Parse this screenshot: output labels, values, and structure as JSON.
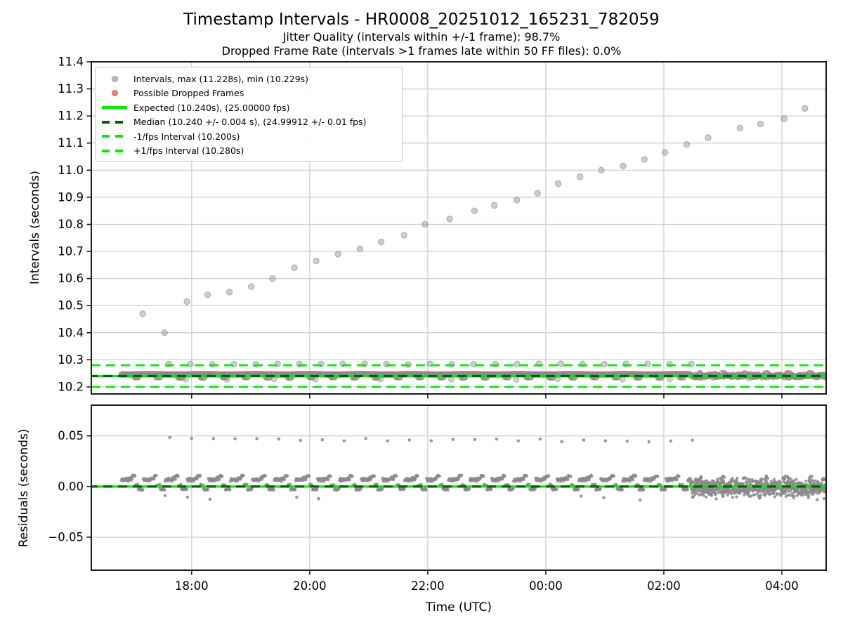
{
  "figure": {
    "title": "Timestamp Intervals - HR0008_20251012_165231_782059",
    "subtitle1": "Jitter Quality (intervals within +/-1 frame): 98.7%",
    "subtitle2": "Dropped Frame Rate (intervals >1 frames late within 50 FF files): 0.0%"
  },
  "colors": {
    "lime": "#00ef00",
    "darkgreen": "#006400",
    "gray": "#9c9c9c",
    "gray_edge": "#7a7a7a",
    "gray_solid": "#8a8a8a",
    "red": "#ef6b6b",
    "red_edge": "#e05555",
    "grid": "#cdcdcd",
    "spine": "#000000"
  },
  "legend": {
    "items": [
      {
        "marker": "dot",
        "color": "gray",
        "label": "Intervals, max (11.228s), min (10.229s)"
      },
      {
        "marker": "dot",
        "color": "red",
        "label": "Possible Dropped Frames"
      },
      {
        "marker": "line-solid",
        "color": "lime",
        "label": "Expected (10.240s), (25.00000 fps)"
      },
      {
        "marker": "line-dashed",
        "color": "darkgreen",
        "label": "Median (10.240 +/- 0.004 s), (24.99912 +/- 0.01 fps)"
      },
      {
        "marker": "line-dashed",
        "color": "lime",
        "label": "-1/fps Interval (10.200s)"
      },
      {
        "marker": "line-dashed",
        "color": "lime",
        "label": "+1/fps Interval (10.280s)"
      }
    ]
  },
  "chart_data": [
    {
      "name": "intervals",
      "type": "scatter",
      "ylabel": "Intervals (seconds)",
      "xlim": [
        16.3,
        28.75
      ],
      "ylim": [
        10.174,
        11.4
      ],
      "xtick_labels_visible": false,
      "grid": true,
      "xticks": [
        {
          "v": 18,
          "label": "18:00"
        },
        {
          "v": 20,
          "label": "20:00"
        },
        {
          "v": 22,
          "label": "22:00"
        },
        {
          "v": 24,
          "label": "00:00"
        },
        {
          "v": 26,
          "label": "02:00"
        },
        {
          "v": 28,
          "label": "04:00"
        }
      ],
      "yticks": [
        {
          "v": 10.2,
          "label": "10.2"
        },
        {
          "v": 10.3,
          "label": "10.3"
        },
        {
          "v": 10.4,
          "label": "10.4"
        },
        {
          "v": 10.5,
          "label": "10.5"
        },
        {
          "v": 10.6,
          "label": "10.6"
        },
        {
          "v": 10.7,
          "label": "10.7"
        },
        {
          "v": 10.8,
          "label": "10.8"
        },
        {
          "v": 10.9,
          "label": "10.9"
        },
        {
          "v": 11.0,
          "label": "11.0"
        },
        {
          "v": 11.1,
          "label": "11.1"
        },
        {
          "v": 11.2,
          "label": "11.2"
        },
        {
          "v": 11.3,
          "label": "11.3"
        },
        {
          "v": 11.4,
          "label": "11.4"
        }
      ],
      "hlines": [
        {
          "name": "expected-line",
          "v": 10.24,
          "style": "solid",
          "color": "lime",
          "width": 3.2
        },
        {
          "name": "median-line",
          "v": 10.24,
          "style": "dashed",
          "color": "darkgreen",
          "width": 3.2
        },
        {
          "name": "minus-1fps-line",
          "v": 10.2,
          "style": "dashed",
          "color": "lime",
          "width": 2.8
        },
        {
          "name": "plus-1fps-line",
          "v": 10.28,
          "style": "dashed",
          "color": "lime",
          "width": 2.8
        }
      ],
      "series": {
        "trend": {
          "kind": "points",
          "r": 4.2,
          "points": [
            [
              17.17,
              10.47
            ],
            [
              17.54,
              10.4
            ],
            [
              17.92,
              10.515
            ],
            [
              18.27,
              10.54
            ],
            [
              18.64,
              10.55
            ],
            [
              19.01,
              10.57
            ],
            [
              19.37,
              10.6
            ],
            [
              19.74,
              10.64
            ],
            [
              20.11,
              10.665
            ],
            [
              20.48,
              10.69
            ],
            [
              20.85,
              10.71
            ],
            [
              21.21,
              10.735
            ],
            [
              21.6,
              10.76
            ],
            [
              21.95,
              10.8
            ],
            [
              22.37,
              10.82
            ],
            [
              22.79,
              10.85
            ],
            [
              23.13,
              10.87
            ],
            [
              23.51,
              10.89
            ],
            [
              23.86,
              10.915
            ],
            [
              24.21,
              10.95
            ],
            [
              24.58,
              10.975
            ],
            [
              24.94,
              11.0
            ],
            [
              25.31,
              11.015
            ],
            [
              25.67,
              11.04
            ],
            [
              26.02,
              11.065
            ],
            [
              26.39,
              11.095
            ],
            [
              26.75,
              11.12
            ],
            [
              27.29,
              11.155
            ],
            [
              27.64,
              11.17
            ],
            [
              28.04,
              11.19
            ],
            [
              28.39,
              11.228
            ]
          ]
        },
        "plus_frame_dots": {
          "kind": "repeat",
          "t0": 17.61,
          "step": 0.369,
          "count": 25,
          "v": 10.284,
          "v_end": 10.284,
          "vjitter": 0.0012,
          "r": 4.2
        },
        "band": {
          "kind": "band",
          "t0": 16.81,
          "t1": 26.45,
          "period": 0.369,
          "base": 10.2465,
          "dip": 10.2355,
          "r": 4
        },
        "band_noise": {
          "kind": "noise",
          "t0": 26.45,
          "t1": 28.74,
          "center": 10.2405,
          "sigma": 0.0035,
          "bump": 10.2515,
          "period": 0.369,
          "r": 3.5
        },
        "low_dots": {
          "kind": "points",
          "r": 4,
          "opacity": 0.45,
          "points": [
            [
              17.9,
              10.228
            ],
            [
              18.6,
              10.2275
            ],
            [
              19.4,
              10.229
            ],
            [
              20.1,
              10.228
            ],
            [
              21.2,
              10.2285
            ],
            [
              22.4,
              10.228
            ],
            [
              23.5,
              10.2275
            ],
            [
              24.2,
              10.229
            ],
            [
              25.3,
              10.228
            ],
            [
              26.1,
              10.2285
            ]
          ]
        }
      }
    },
    {
      "name": "residuals",
      "type": "scatter",
      "ylabel": "Residuals (seconds)",
      "xlabel": "Time (UTC)",
      "xlim": [
        16.3,
        28.75
      ],
      "ylim": [
        -0.0826,
        0.0803
      ],
      "xtick_labels_visible": true,
      "grid": true,
      "xticks": [
        {
          "v": 18,
          "label": "18:00"
        },
        {
          "v": 20,
          "label": "20:00"
        },
        {
          "v": 22,
          "label": "22:00"
        },
        {
          "v": 24,
          "label": "00:00"
        },
        {
          "v": 26,
          "label": "02:00"
        },
        {
          "v": 28,
          "label": "04:00"
        }
      ],
      "yticks": [
        {
          "v": -0.05,
          "label": "−0.05"
        },
        {
          "v": 0.0,
          "label": "0.00"
        },
        {
          "v": 0.05,
          "label": "0.05"
        }
      ],
      "hlines": [
        {
          "name": "expected-line",
          "v": 0.0,
          "style": "solid",
          "color": "lime",
          "width": 3.2
        },
        {
          "name": "median-line",
          "v": 0.0,
          "style": "dashed",
          "color": "darkgreen",
          "width": 3.2
        }
      ],
      "series": {
        "top_dots": {
          "kind": "repeat",
          "t0": 17.63,
          "step": 0.369,
          "count": 25,
          "v": 0.0476,
          "v_end": 0.0445,
          "vjitter": 0.0015,
          "r": 2.3
        },
        "clusters": {
          "kind": "clusters",
          "t0": 16.81,
          "t1": 26.45,
          "period": 0.369,
          "run": 0.0075,
          "bump": 0.0105,
          "drop": -0.0028,
          "r": 2.4
        },
        "low_dots": {
          "kind": "points",
          "r": 2.3,
          "points": [
            [
              17.55,
              -0.009
            ],
            [
              17.93,
              -0.0105
            ],
            [
              18.31,
              -0.0125
            ],
            [
              19.78,
              -0.0105
            ],
            [
              20.15,
              -0.012
            ],
            [
              24.6,
              -0.0095
            ],
            [
              24.98,
              -0.011
            ],
            [
              25.6,
              -0.0135
            ],
            [
              26.5,
              -0.01
            ],
            [
              27.0,
              -0.0095
            ],
            [
              28.2,
              -0.011
            ],
            [
              28.6,
              -0.013
            ]
          ]
        },
        "noise": {
          "kind": "noise2",
          "t0": 26.45,
          "t1": 28.74,
          "center": -0.001,
          "sigma": 0.0042,
          "bump": 0.009,
          "period": 0.369,
          "r": 2.2
        }
      }
    }
  ]
}
